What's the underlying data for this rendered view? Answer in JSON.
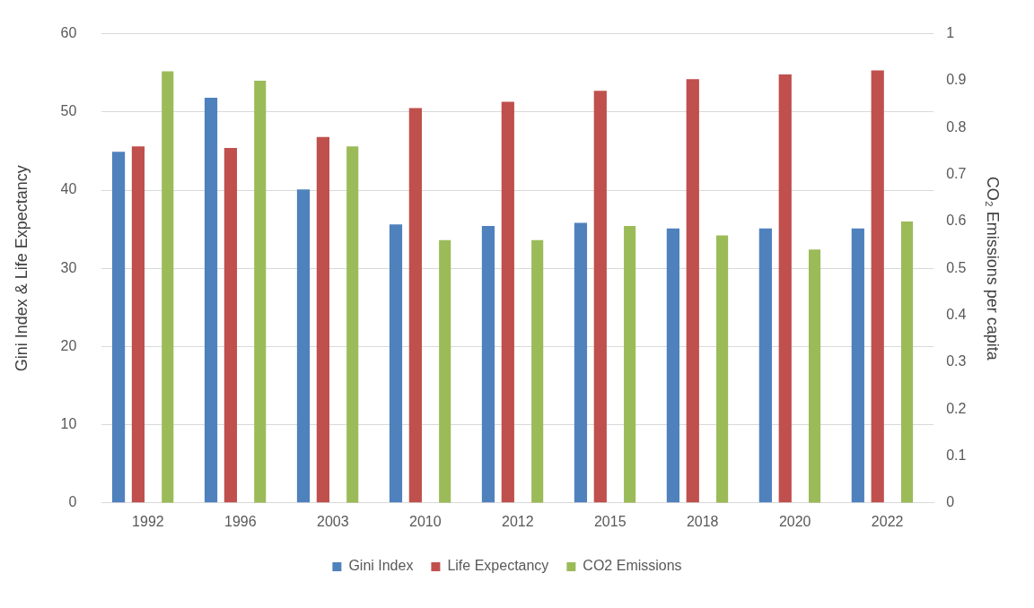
{
  "chart_data": {
    "type": "bar",
    "categories": [
      "1992",
      "1996",
      "2003",
      "2010",
      "2012",
      "2015",
      "2018",
      "2020",
      "2022"
    ],
    "series": [
      {
        "name": "Gini Index",
        "color": "#4f81bd",
        "values": [
          44.9,
          51.8,
          40.1,
          35.6,
          35.4,
          35.8,
          35.1,
          35.1,
          35.1
        ]
      },
      {
        "name": "Life Expectancy",
        "color": "#c0504d",
        "values": [
          45.6,
          45.4,
          46.8,
          50.5,
          51.3,
          52.7,
          54.2,
          54.8,
          55.3
        ]
      },
      {
        "name": "CO2 Emissions",
        "color": "#9bbb59",
        "axis": "y2",
        "values": [
          0.92,
          0.9,
          0.76,
          0.56,
          0.56,
          0.59,
          0.57,
          0.54,
          0.6
        ]
      }
    ],
    "ylabel": "Gini Index & Life Expectancy",
    "y2label": "CO₂ Emissions per capita",
    "ylim": [
      0,
      60
    ],
    "yticks": [
      0,
      10,
      20,
      30,
      40,
      50,
      60
    ],
    "y2lim": [
      0,
      1
    ],
    "y2ticks": [
      0,
      0.1,
      0.2,
      0.3,
      0.4,
      0.5,
      0.6,
      0.7,
      0.8,
      0.9,
      1
    ],
    "grid": "y",
    "legend": "bottom"
  }
}
